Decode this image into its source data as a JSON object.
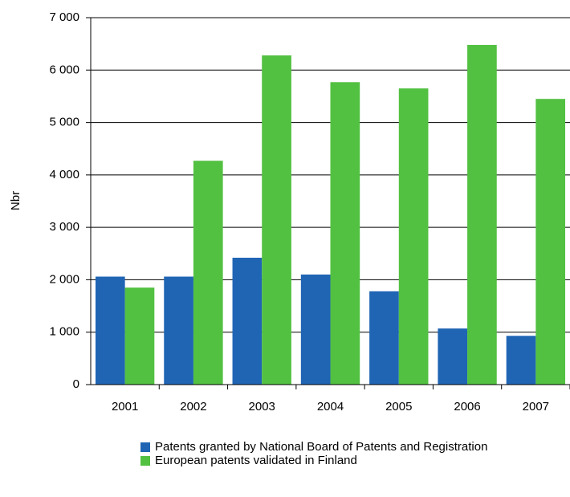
{
  "chart_data": {
    "type": "bar",
    "y_label": "Nbr",
    "categories": [
      "2001",
      "2002",
      "2003",
      "2004",
      "2005",
      "2006",
      "2007"
    ],
    "series": [
      {
        "name": "Patents granted by National Board of Patents and Registration",
        "color": "#1f65b4",
        "values": [
          2060,
          2060,
          2420,
          2100,
          1780,
          1070,
          930
        ]
      },
      {
        "name": "European patents validated in Finland",
        "color": "#52c041",
        "values": [
          1850,
          4270,
          6280,
          5770,
          5650,
          6480,
          5450
        ]
      }
    ],
    "ylim": [
      0,
      7000
    ],
    "yticks": [
      0,
      {
        "value": 1000,
        "label": "1 000"
      },
      {
        "value": 2000,
        "label": "2 000"
      },
      {
        "value": 3000,
        "label": "3 000"
      },
      {
        "value": 4000,
        "label": "4 000"
      },
      {
        "value": 5000,
        "label": "5 000"
      },
      {
        "value": 6000,
        "label": "6 000"
      },
      {
        "value": 7000,
        "label": "7 000"
      }
    ],
    "grid": true
  }
}
